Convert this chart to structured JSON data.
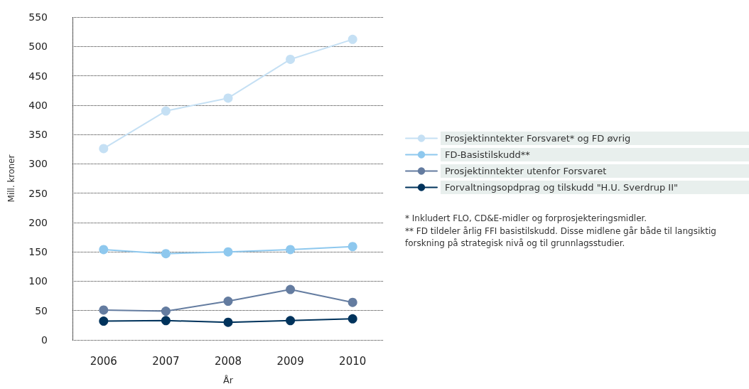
{
  "chart_data": {
    "type": "line",
    "xlabel": "År",
    "ylabel": "Mill. kroner",
    "categories": [
      "2006",
      "2007",
      "2008",
      "2009",
      "2010"
    ],
    "series": [
      {
        "name": "Prosjektinntekter Forsvaret* og FD øvrig",
        "color": "#c5e0f4",
        "values": [
          326,
          390,
          412,
          478,
          512
        ]
      },
      {
        "name": "FD-Basistilskudd**",
        "color": "#8ec8ee",
        "values": [
          154,
          147,
          150,
          154,
          159
        ]
      },
      {
        "name": "Prosjektinntekter utenfor Forsvaret",
        "color": "#647ca0",
        "values": [
          51,
          49,
          66,
          86,
          64
        ]
      },
      {
        "name": "Forvaltningsopdprag og tilskudd \"H.U. Sverdrup II\"",
        "color": "#00335c",
        "values": [
          32,
          33,
          30,
          33,
          36
        ]
      }
    ],
    "ylim": [
      0,
      550
    ],
    "yticks": [
      0,
      50,
      100,
      150,
      200,
      250,
      300,
      350,
      400,
      450,
      500,
      550
    ],
    "grid": "y",
    "legend": "right",
    "marker": "circle",
    "line_style": "solid",
    "annotations": [
      "* Inkludert FLO, CD&E-midler og forprosjekteringsmidler.",
      "** FD tildeler årlig FFI basistilskudd. Disse midlene går både til langsiktig forskning på strategisk nivå og til grunnlagsstudier."
    ]
  }
}
